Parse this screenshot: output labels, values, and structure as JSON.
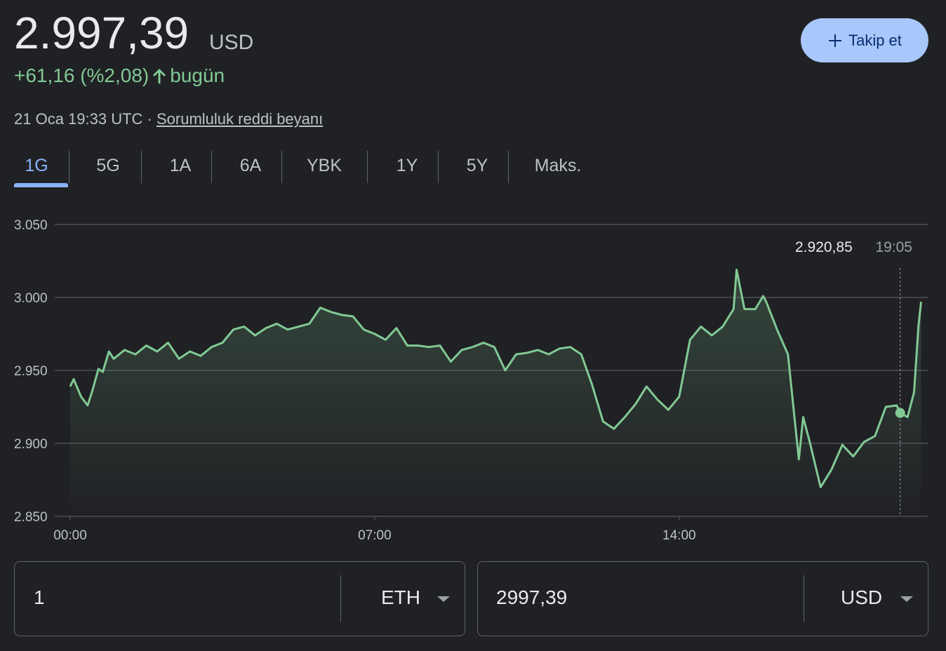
{
  "header": {
    "price": "2.997,39",
    "currency": "USD",
    "change": "+61,16 (%2,08)",
    "period": "bugün",
    "timestamp": "21 Oca 19:33 UTC ·",
    "disclaimer": "Sorumluluk reddi beyanı",
    "follow": "Takip et"
  },
  "tabs": [
    "1G",
    "5G",
    "1A",
    "6A",
    "YBK",
    "1Y",
    "5Y",
    "Maks."
  ],
  "chart_data": {
    "type": "line",
    "color": "#81c995",
    "grid": true,
    "x": [
      0,
      0.08,
      0.25,
      0.4,
      0.5,
      0.65,
      0.75,
      0.89,
      1.0,
      1.25,
      1.5,
      1.75,
      2.0,
      2.25,
      2.5,
      2.75,
      3.0,
      3.25,
      3.5,
      3.75,
      4.0,
      4.25,
      4.5,
      4.75,
      5.0,
      5.25,
      5.5,
      5.75,
      6.0,
      6.25,
      6.5,
      6.75,
      7.0,
      7.25,
      7.5,
      7.75,
      8.0,
      8.25,
      8.5,
      8.75,
      9.0,
      9.25,
      9.5,
      9.75,
      10.0,
      10.25,
      10.5,
      10.75,
      11.0,
      11.25,
      11.5,
      11.75,
      12.0,
      12.25,
      12.5,
      12.75,
      13.0,
      13.25,
      13.5,
      13.75,
      14.0,
      14.25,
      14.5,
      14.75,
      15.0,
      15.25,
      15.32,
      15.5,
      15.75,
      15.93,
      16.0,
      16.25,
      16.5,
      16.75,
      16.85,
      17.0,
      17.25,
      17.5,
      17.75,
      18.0,
      18.25,
      18.5,
      18.75,
      19.0,
      19.08,
      19.25,
      19.4,
      19.5,
      19.56
    ],
    "values": [
      2939,
      2944,
      2932,
      2926,
      2935,
      2951,
      2949,
      2963,
      2958,
      2964,
      2961,
      2967,
      2963,
      2969,
      2958,
      2963,
      2960,
      2966,
      2969,
      2978,
      2980,
      2974,
      2979,
      2982,
      2978,
      2980,
      2982,
      2993,
      2990,
      2988,
      2987,
      2978,
      2975,
      2971,
      2979,
      2967,
      2967,
      2966,
      2967,
      2956,
      2964,
      2966,
      2969,
      2966,
      2950,
      2961,
      2962,
      2964,
      2961,
      2965,
      2966,
      2961,
      2940,
      2915,
      2910,
      2918,
      2927,
      2939,
      2930,
      2923,
      2932,
      2971,
      2980,
      2974,
      2980,
      2992,
      3019,
      2992,
      2992,
      3001,
      2997,
      2978,
      2961,
      2889,
      2918,
      2901,
      2870,
      2882,
      2899,
      2891,
      2901,
      2905,
      2925,
      2926,
      2920.85,
      2918,
      2935,
      2980,
      2997
    ],
    "xlim": [
      0,
      19.73
    ],
    "ylim": [
      2850,
      3050
    ],
    "xticks": [
      {
        "value": 0,
        "label": "00:00"
      },
      {
        "value": 7,
        "label": "07:00"
      },
      {
        "value": 14,
        "label": "14:00"
      }
    ],
    "yticks": [
      {
        "value": 2850,
        "label": "2.850"
      },
      {
        "value": 2900,
        "label": "2.900"
      },
      {
        "value": 2950,
        "label": "2.950"
      },
      {
        "value": 3000,
        "label": "3.000"
      },
      {
        "value": 3050,
        "label": "3.050"
      }
    ],
    "tooltip": {
      "value": {
        "value": 2920.85,
        "label": "2.920,85"
      },
      "time": {
        "value": 19.08,
        "label": "19:05"
      }
    }
  },
  "converter": {
    "from_amount": "1",
    "from_currency": "ETH",
    "to_amount": "2997,39",
    "to_currency": "USD"
  }
}
